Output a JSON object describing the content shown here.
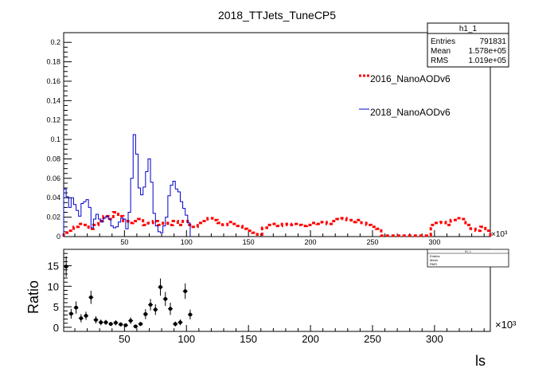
{
  "title": "2018_TTJets_TuneCP5",
  "colors": {
    "red": "#ff0000",
    "blue": "#0000cc"
  },
  "stats_box": {
    "name": "h1_1",
    "rows": [
      {
        "label": "Entries",
        "value": "791831"
      },
      {
        "label": "Mean",
        "value": "1.578e+05"
      },
      {
        "label": "RMS",
        "value": "1.019e+05"
      }
    ]
  },
  "ratio_stats_box": {
    "name": "h1_1",
    "rows": [
      {
        "label": "Entries",
        "value": ""
      },
      {
        "label": "Mean",
        "value": ""
      },
      {
        "label": "RMS",
        "value": ""
      }
    ]
  },
  "chart_data": [
    {
      "type": "line",
      "title": "2018_TTJets_TuneCP5",
      "x_unit": "×10³",
      "xlim": [
        1,
        345
      ],
      "ylim": [
        0,
        0.21
      ],
      "yticks": [
        "0",
        "0.02",
        "0.04",
        "0.06",
        "0.08",
        "0.1",
        "0.12",
        "0.14",
        "0.16",
        "0.18",
        "0.2"
      ],
      "ytick_values": [
        0,
        0.02,
        0.04,
        0.06,
        0.08,
        0.1,
        0.12,
        0.14,
        0.16,
        0.18,
        0.2
      ],
      "xticks": [
        "50",
        "100",
        "150",
        "200",
        "250",
        "300"
      ],
      "xtick_values": [
        50,
        100,
        150,
        200,
        250,
        300
      ],
      "series": [
        {
          "name": "2016_NanoAODv6",
          "style": "dashed-step",
          "x": [
            1,
            5,
            9,
            13,
            17,
            21,
            25,
            29,
            33,
            37,
            41,
            45,
            49,
            53,
            57,
            61,
            65,
            69,
            73,
            77,
            81,
            85,
            89,
            93,
            97,
            101,
            105,
            109,
            113,
            117,
            121,
            125,
            129,
            133,
            137,
            141,
            145,
            149,
            153,
            157,
            161,
            165,
            169,
            173,
            177,
            181,
            185,
            189,
            193,
            197,
            201,
            205,
            209,
            213,
            217,
            221,
            225,
            229,
            233,
            237,
            241,
            245,
            249,
            253,
            257,
            261,
            265,
            269,
            273,
            277,
            281,
            285,
            289,
            293,
            297,
            301,
            305,
            309,
            313,
            317,
            321,
            325,
            329,
            333,
            337,
            341
          ],
          "values": [
            0.004,
            0.006,
            0.01,
            0.013,
            0.012,
            0.008,
            0.012,
            0.016,
            0.021,
            0.018,
            0.025,
            0.021,
            0.016,
            0.014,
            0.016,
            0.018,
            0.012,
            0.014,
            0.016,
            0.012,
            0.014,
            0.012,
            0.016,
            0.012,
            0.016,
            0.012,
            0.01,
            0.014,
            0.016,
            0.019,
            0.017,
            0.014,
            0.012,
            0.015,
            0.013,
            0.011,
            0.008,
            0.006,
            0.004,
            0.002,
            0.009,
            0.012,
            0.013,
            0.011,
            0.013,
            0.012,
            0.013,
            0.012,
            0.011,
            0.012,
            0.014,
            0.013,
            0.015,
            0.013,
            0.016,
            0.018,
            0.019,
            0.017,
            0.015,
            0.017,
            0.014,
            0.012,
            0.01,
            0.008,
            0.001,
            0.001,
            0.001,
            0.001,
            0.001,
            0.001,
            0.001,
            0.001,
            0.001,
            0.001,
            0.012,
            0.014,
            0.015,
            0.012,
            0.017,
            0.019,
            0.018,
            0.012,
            0.008,
            0.006,
            0.01,
            0.006
          ]
        },
        {
          "name": "2018_NanoAODv6",
          "style": "step",
          "x": [
            1,
            3,
            5,
            7,
            9,
            11,
            13,
            15,
            17,
            19,
            21,
            23,
            25,
            27,
            29,
            31,
            33,
            35,
            37,
            39,
            41,
            43,
            45,
            47,
            49,
            51,
            53,
            55,
            57,
            59,
            61,
            63,
            65,
            67,
            69,
            71,
            73,
            75,
            77,
            79,
            81,
            83,
            85,
            87,
            89,
            91,
            93,
            95,
            97,
            99,
            101
          ],
          "values": [
            0.049,
            0.041,
            0.03,
            0.04,
            0.033,
            0.027,
            0.021,
            0.034,
            0.036,
            0.038,
            0.03,
            0.009,
            0.018,
            0.023,
            0.018,
            0.015,
            0.019,
            0.021,
            0.018,
            0.011,
            0.009,
            0.01,
            0.015,
            0.019,
            0.018,
            0.008,
            0.025,
            0.06,
            0.105,
            0.085,
            0.05,
            0.043,
            0.051,
            0.067,
            0.08,
            0.056,
            0.024,
            0.011,
            0.005,
            0.004,
            0.011,
            0.02,
            0.042,
            0.053,
            0.057,
            0.049,
            0.046,
            0.036,
            0.029,
            0.022,
            0.014
          ]
        }
      ],
      "legend": [
        "2016_NanoAODv6",
        "2018_NanoAODv6"
      ]
    },
    {
      "type": "scatter",
      "ylabel": "Ratio",
      "xlabel": "ls",
      "x_unit": "×10³",
      "xlim": [
        1,
        345
      ],
      "ylim": [
        -1,
        19
      ],
      "yticks": [
        "0",
        "5",
        "10",
        "15"
      ],
      "ytick_values": [
        0,
        5,
        10,
        15
      ],
      "xticks": [
        "50",
        "100",
        "150",
        "200",
        "250",
        "300"
      ],
      "xtick_values": [
        50,
        100,
        150,
        200,
        250,
        300
      ],
      "points": {
        "x": [
          3,
          7,
          11,
          15,
          19,
          23,
          27,
          31,
          35,
          39,
          43,
          47,
          51,
          55,
          59,
          63,
          67,
          71,
          75,
          79,
          83,
          87,
          91,
          95,
          99,
          103
        ],
        "y": [
          14.8,
          3.3,
          4.8,
          2.2,
          2.8,
          7.3,
          1.8,
          1.2,
          1.2,
          0.8,
          1.1,
          0.7,
          0.5,
          1.6,
          0.2,
          0.8,
          3.2,
          5.5,
          4.3,
          9.8,
          6.9,
          4.5,
          0.8,
          1.2,
          8.8,
          3.1
        ],
        "err": [
          2.5,
          1.2,
          1.5,
          1.0,
          1.0,
          1.6,
          0.9,
          0.7,
          0.6,
          0.5,
          0.6,
          0.5,
          0.4,
          0.8,
          0.3,
          0.5,
          1.2,
          1.4,
          1.3,
          2.1,
          1.7,
          1.5,
          0.6,
          0.7,
          1.9,
          1.2
        ]
      }
    }
  ]
}
